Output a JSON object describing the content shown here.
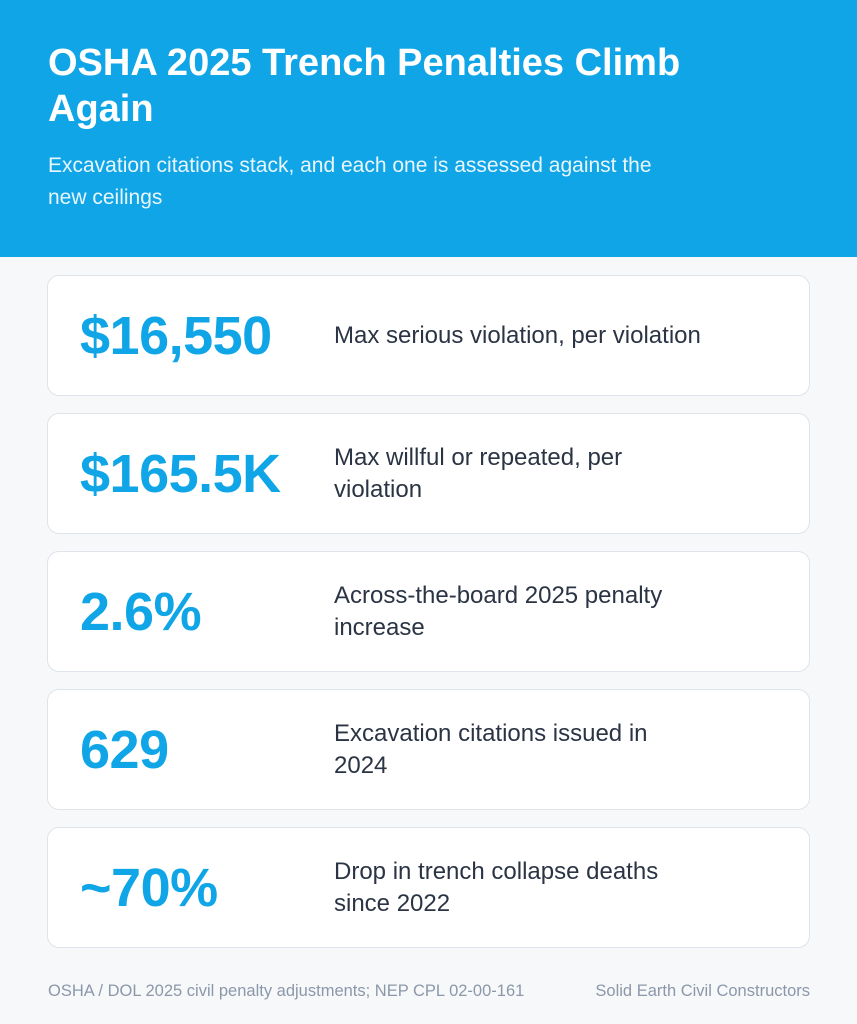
{
  "header": {
    "title": "OSHA 2025 Trench Penalties Climb Again",
    "subtitle": "Excavation citations stack, and each one is assessed against the new ceilings"
  },
  "stats": [
    {
      "value": "$16,550",
      "label": "Max serious violation, per violation"
    },
    {
      "value": "$165.5K",
      "label": "Max willful or repeated, per violation"
    },
    {
      "value": "2.6%",
      "label": "Across-the-board 2025 penalty increase"
    },
    {
      "value": "629",
      "label": "Excavation citations issued in 2024"
    },
    {
      "value": "~70%",
      "label": "Drop in trench collapse deaths since 2022"
    }
  ],
  "footer": {
    "source": "OSHA / DOL 2025 civil penalty adjustments; NEP CPL 02-00-161",
    "brand": "Solid Earth Civil Constructors"
  },
  "colors": {
    "accent": "#0fa5e6",
    "background": "#f7f8fa",
    "card_border": "#dfe4ea",
    "text_dark": "#2b3444",
    "text_muted": "#8b98aa"
  }
}
